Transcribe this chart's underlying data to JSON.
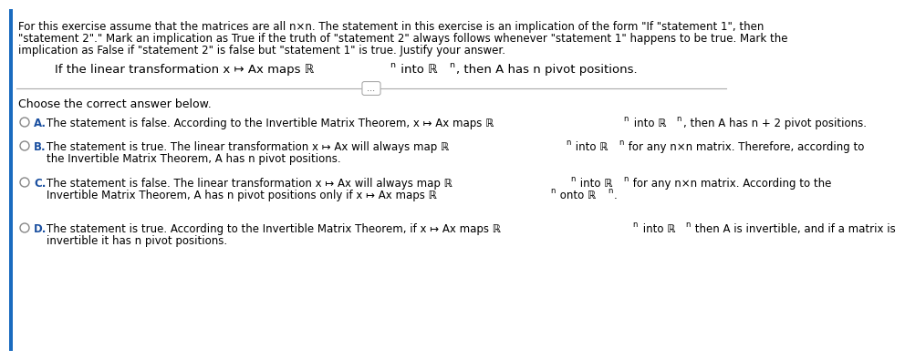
{
  "bg_color": "#ffffff",
  "border_color": "#1a6bbf",
  "text_color": "#000000",
  "blue_text_color": "#1a4fa0",
  "header_lines": [
    "For this exercise assume that the matrices are all n×n. The statement in this exercise is an implication of the form \"If \"statement 1\", then",
    "\"statement 2\".\" Mark an implication as True if the truth of \"statement 2\" always follows whenever \"statement 1\" happens to be true. Mark the",
    "implication as False if \"statement 2\" is false but \"statement 1\" is true. Justify your answer."
  ],
  "choose_text": "Choose the correct answer below.",
  "font_size_header": 8.5,
  "font_size_question": 9.5,
  "font_size_options": 8.5,
  "font_size_choose": 9.0
}
